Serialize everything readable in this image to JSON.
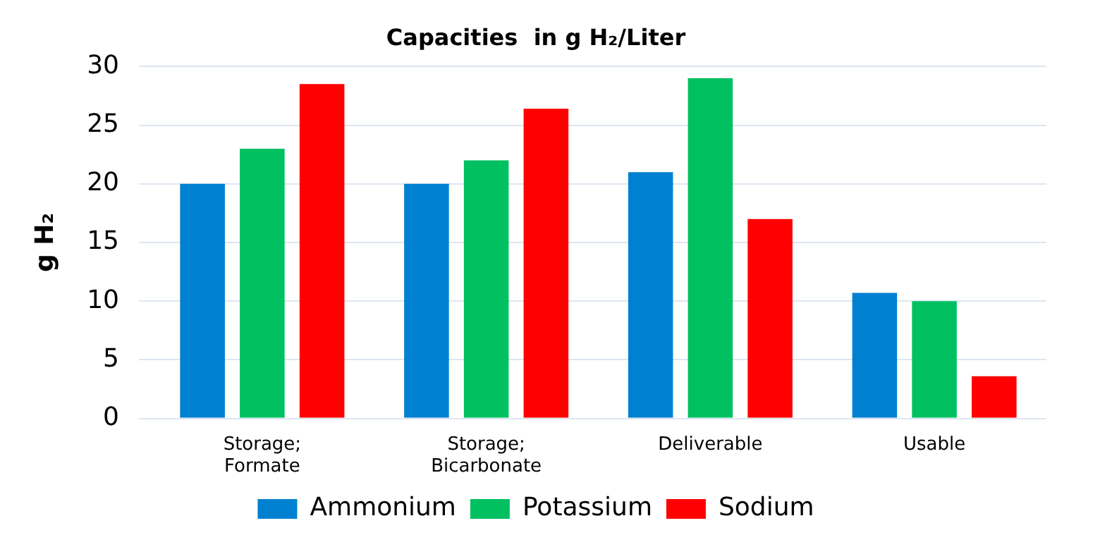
{
  "chart_data": {
    "type": "bar",
    "title": "Capacities  in g H₂/Liter",
    "ylabel": "g H₂",
    "categories": [
      "Storage; Formate",
      "Storage; Bicarbonate",
      "Deliverable",
      "Usable"
    ],
    "series": [
      {
        "name": "Ammonium",
        "color": "#0080d0",
        "values": [
          20,
          20,
          21,
          10.7
        ]
      },
      {
        "name": "Potassium",
        "color": "#00c060",
        "values": [
          23,
          22,
          29,
          10
        ]
      },
      {
        "name": "Sodium",
        "color": "#ff0000",
        "values": [
          28.5,
          26.4,
          17,
          3.6
        ]
      }
    ],
    "ylim": [
      0,
      30
    ],
    "yticks": [
      0,
      5,
      10,
      15,
      20,
      25,
      30
    ],
    "grid": "y",
    "legend": "bottom"
  }
}
